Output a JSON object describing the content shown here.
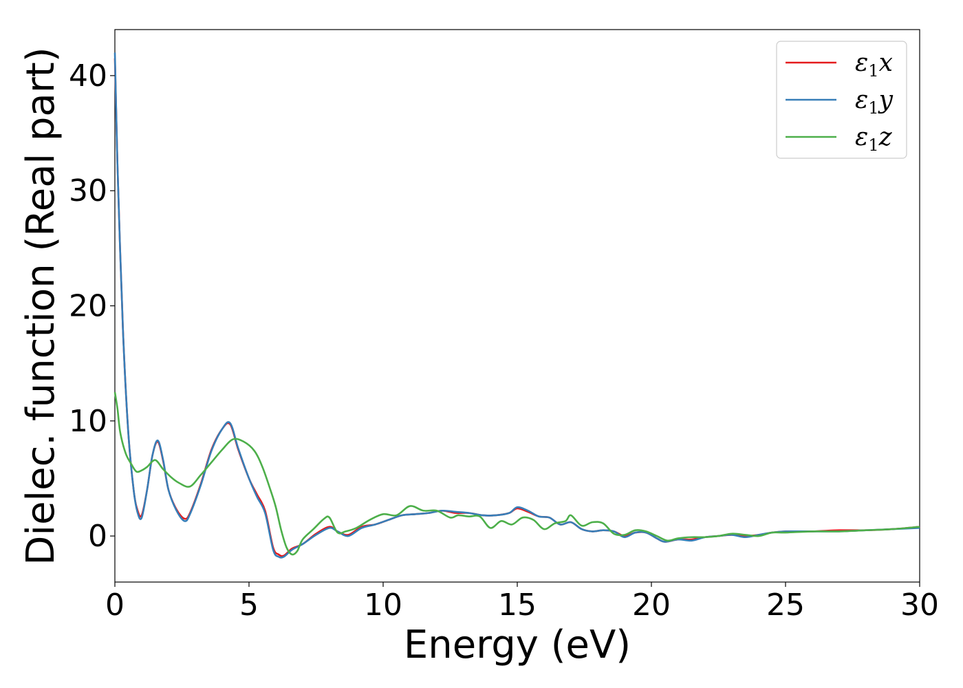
{
  "chart_data": {
    "type": "line",
    "xlabel": "Energy (eV)",
    "ylabel": "Dielec. function (Real part)",
    "xlim": [
      0,
      30
    ],
    "ylim": [
      -4,
      44
    ],
    "xticks": [
      "0",
      "5",
      "10",
      "15",
      "20",
      "25",
      "30"
    ],
    "yticks": [
      "0",
      "10",
      "20",
      "30",
      "40"
    ],
    "grid": false,
    "legend_position": "top-right",
    "series": [
      {
        "name": "ε1x",
        "legend_base": "ε",
        "legend_sub": "1",
        "legend_var": "x",
        "color": "#e41a1c",
        "x": [
          0,
          0.1,
          0.3,
          0.5,
          0.7,
          0.85,
          1.0,
          1.2,
          1.4,
          1.6,
          1.8,
          2.0,
          2.3,
          2.6,
          2.8,
          3.2,
          3.6,
          4.0,
          4.3,
          4.6,
          5.0,
          5.3,
          5.6,
          5.9,
          6.1,
          6.3,
          6.6,
          7.0,
          7.5,
          8.0,
          8.3,
          8.7,
          9.2,
          9.7,
          10.2,
          10.7,
          11.2,
          11.7,
          12.2,
          12.7,
          13.2,
          13.7,
          14.2,
          14.7,
          15.0,
          15.4,
          15.8,
          16.2,
          16.6,
          17.0,
          17.4,
          17.8,
          18.2,
          18.6,
          19.0,
          19.4,
          19.8,
          20.2,
          20.5,
          21.0,
          21.5,
          22.0,
          22.5,
          23.0,
          23.5,
          24.0,
          24.5,
          25.0,
          26.0,
          27.0,
          28.0,
          29.0,
          30.0
        ],
        "y": [
          41.5,
          32,
          18,
          9,
          4,
          2.2,
          1.8,
          4,
          7,
          8.2,
          6.5,
          4,
          2.3,
          1.5,
          2,
          4.5,
          7.5,
          9.3,
          9.7,
          7.5,
          5,
          3.6,
          2.2,
          -1,
          -1.6,
          -1.7,
          -1.1,
          -0.7,
          0.2,
          0.8,
          0.4,
          0.1,
          0.8,
          1.0,
          1.4,
          1.8,
          1.9,
          2.0,
          2.2,
          2.0,
          2.0,
          1.8,
          1.8,
          2.0,
          2.4,
          2.1,
          1.7,
          1.6,
          1.0,
          1.2,
          0.6,
          0.4,
          0.5,
          0.4,
          0.0,
          0.3,
          0.3,
          -0.2,
          -0.5,
          -0.3,
          -0.3,
          -0.1,
          0.0,
          0.1,
          0.0,
          0.1,
          0.3,
          0.4,
          0.4,
          0.5,
          0.5,
          0.6,
          0.8
        ]
      },
      {
        "name": "ε1y",
        "legend_base": "ε",
        "legend_sub": "1",
        "legend_var": "y",
        "color": "#377eb8",
        "x": [
          0,
          0.1,
          0.3,
          0.5,
          0.7,
          0.85,
          1.0,
          1.2,
          1.4,
          1.6,
          1.8,
          2.0,
          2.3,
          2.6,
          2.8,
          3.2,
          3.6,
          4.0,
          4.3,
          4.6,
          5.0,
          5.3,
          5.6,
          5.9,
          6.1,
          6.3,
          6.6,
          7.0,
          7.5,
          8.0,
          8.3,
          8.7,
          9.2,
          9.7,
          10.2,
          10.7,
          11.2,
          11.7,
          12.2,
          12.7,
          13.2,
          13.7,
          14.2,
          14.7,
          15.0,
          15.4,
          15.8,
          16.2,
          16.6,
          17.0,
          17.4,
          17.8,
          18.2,
          18.6,
          19.0,
          19.4,
          19.8,
          20.2,
          20.5,
          21.0,
          21.5,
          22.0,
          22.5,
          23.0,
          23.5,
          24.0,
          24.5,
          25.0,
          26.0,
          27.0,
          28.0,
          29.0,
          30.0
        ],
        "y": [
          42,
          32,
          18,
          9,
          4,
          2.0,
          1.6,
          4,
          7,
          8.3,
          6.6,
          4,
          2.2,
          1.3,
          1.9,
          4.4,
          7.4,
          9.3,
          9.8,
          7.6,
          5,
          3.4,
          2.0,
          -1.2,
          -1.8,
          -1.8,
          -1.2,
          -0.7,
          0.1,
          0.7,
          0.4,
          0.0,
          0.7,
          1.0,
          1.4,
          1.8,
          1.9,
          2.0,
          2.2,
          2.1,
          2.0,
          1.8,
          1.8,
          2.0,
          2.5,
          2.2,
          1.7,
          1.6,
          1.0,
          1.2,
          0.6,
          0.4,
          0.5,
          0.4,
          -0.1,
          0.3,
          0.3,
          -0.2,
          -0.5,
          -0.3,
          -0.4,
          -0.1,
          0.0,
          0.1,
          -0.1,
          0.1,
          0.3,
          0.4,
          0.4,
          0.4,
          0.5,
          0.6,
          0.7
        ]
      },
      {
        "name": "ε1z",
        "legend_base": "ε",
        "legend_sub": "1",
        "legend_var": "z",
        "color": "#4daf4a",
        "x": [
          0,
          0.1,
          0.2,
          0.4,
          0.6,
          0.8,
          1.0,
          1.2,
          1.5,
          1.8,
          2.1,
          2.4,
          2.8,
          3.2,
          3.6,
          4.0,
          4.4,
          4.8,
          5.2,
          5.5,
          5.8,
          6.0,
          6.2,
          6.4,
          6.6,
          6.8,
          7.0,
          7.4,
          7.8,
          8.0,
          8.3,
          8.6,
          9.0,
          9.5,
          10.0,
          10.5,
          11.0,
          11.5,
          12.0,
          12.5,
          12.8,
          13.2,
          13.6,
          14.0,
          14.4,
          14.8,
          15.2,
          15.6,
          16.0,
          16.4,
          16.8,
          17.0,
          17.4,
          17.8,
          18.2,
          18.6,
          19.0,
          19.4,
          19.8,
          20.2,
          20.6,
          21.0,
          21.5,
          22.0,
          22.5,
          23.0,
          23.5,
          24.0,
          24.5,
          25.0,
          26.0,
          27.0,
          28.0,
          29.0,
          30.0
        ],
        "y": [
          12.5,
          11,
          9,
          7.2,
          6.3,
          5.6,
          5.7,
          6,
          6.6,
          5.8,
          5.1,
          4.6,
          4.3,
          5.3,
          6.4,
          7.5,
          8.4,
          8.2,
          7.4,
          6.0,
          4,
          2.5,
          0.5,
          -1.0,
          -1.6,
          -1.3,
          -0.3,
          0.6,
          1.5,
          1.6,
          0.3,
          0.4,
          0.7,
          1.4,
          1.9,
          1.8,
          2.6,
          2.2,
          2.2,
          1.6,
          1.8,
          1.7,
          1.7,
          0.7,
          1.3,
          1.0,
          1.6,
          1.4,
          0.6,
          1.1,
          1.3,
          1.8,
          0.9,
          1.2,
          1.1,
          0.2,
          0.1,
          0.5,
          0.4,
          0.0,
          -0.4,
          -0.2,
          -0.1,
          -0.1,
          0.0,
          0.2,
          0.1,
          0.0,
          0.3,
          0.3,
          0.4,
          0.4,
          0.5,
          0.6,
          0.8
        ]
      }
    ]
  }
}
